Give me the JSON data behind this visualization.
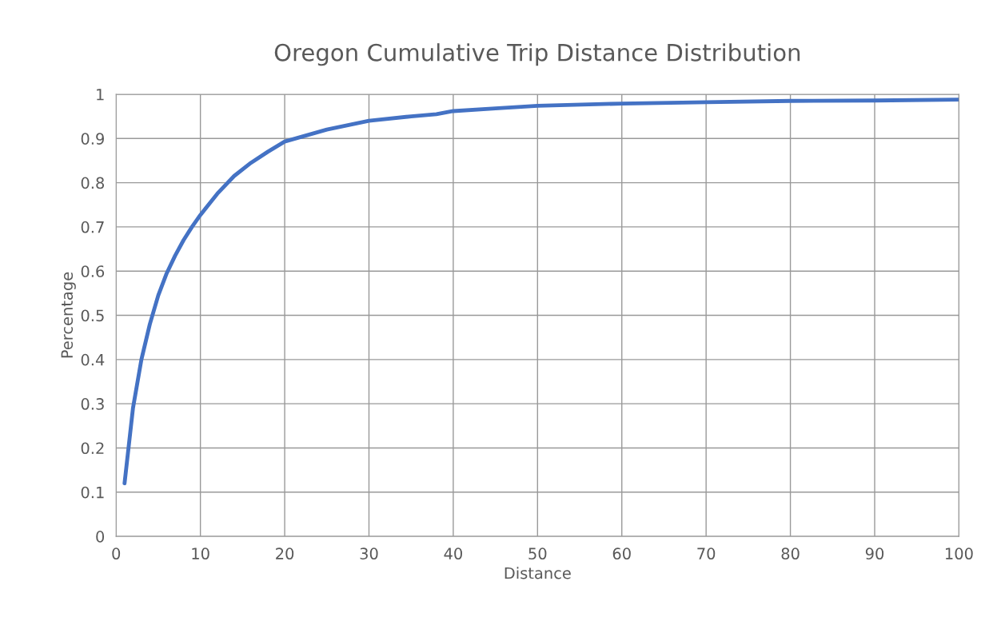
{
  "chart_data": {
    "type": "line",
    "title": "Oregon Cumulative Trip Distance Distribution",
    "xlabel": "Distance",
    "ylabel": "Percentage",
    "x": [
      1,
      2,
      3,
      4,
      5,
      6,
      7,
      8,
      9,
      10,
      12,
      14,
      16,
      18,
      20,
      25,
      30,
      35,
      38,
      40,
      45,
      50,
      60,
      70,
      80,
      90,
      100
    ],
    "series": [
      {
        "color": "#4472c4",
        "values": [
          0.12,
          0.29,
          0.4,
          0.48,
          0.545,
          0.595,
          0.635,
          0.67,
          0.7,
          0.727,
          0.775,
          0.815,
          0.845,
          0.87,
          0.893,
          0.92,
          0.94,
          0.95,
          0.955,
          0.962,
          0.968,
          0.974,
          0.979,
          0.982,
          0.985,
          0.986,
          0.988
        ]
      }
    ],
    "xlim": [
      0,
      100
    ],
    "xticks": [
      0,
      10,
      20,
      30,
      40,
      50,
      60,
      70,
      80,
      90,
      100
    ],
    "ylim": [
      0,
      1
    ],
    "yticks": [
      0,
      0.1,
      0.2,
      0.3,
      0.4,
      0.5,
      0.6,
      0.7,
      0.8,
      0.9,
      1
    ],
    "grid": true,
    "marker": "none",
    "line_style": "solid"
  }
}
